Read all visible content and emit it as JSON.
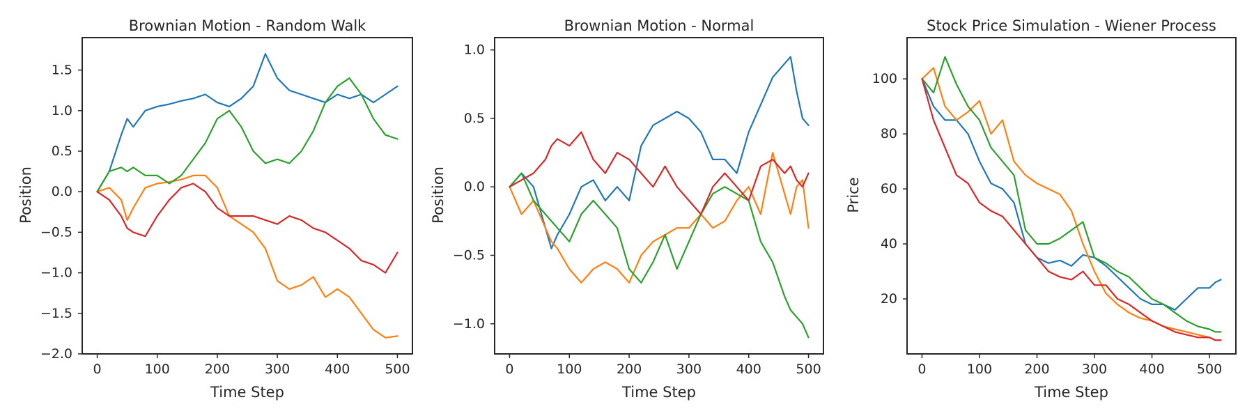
{
  "colors": [
    "#1f77b4",
    "#ff7f0e",
    "#2ca02c",
    "#d62728"
  ],
  "chart_data": [
    {
      "type": "line",
      "title": "Brownian Motion - Random Walk",
      "xlabel": "Time Step",
      "ylabel": "Position",
      "xlim": [
        -25,
        525
      ],
      "ylim": [
        -2.0,
        1.9
      ],
      "xticks": [
        0,
        100,
        200,
        300,
        400,
        500
      ],
      "yticks": [
        -2.0,
        -1.5,
        -1.0,
        -0.5,
        0.0,
        0.5,
        1.0,
        1.5
      ],
      "ytick_labels": [
        "−2.0",
        "−1.5",
        "−1.0",
        "−0.5",
        "0.0",
        "0.5",
        "1.0",
        "1.5"
      ],
      "grid": false,
      "series": [
        {
          "x": [
            0,
            20,
            40,
            50,
            60,
            80,
            100,
            120,
            140,
            160,
            180,
            200,
            220,
            240,
            260,
            280,
            300,
            320,
            340,
            360,
            380,
            400,
            420,
            440,
            460,
            480,
            500
          ],
          "y": [
            0,
            0.25,
            0.7,
            0.9,
            0.8,
            1.0,
            1.05,
            1.08,
            1.12,
            1.15,
            1.2,
            1.1,
            1.05,
            1.15,
            1.3,
            1.7,
            1.4,
            1.25,
            1.2,
            1.15,
            1.1,
            1.2,
            1.15,
            1.2,
            1.1,
            1.2,
            1.3
          ]
        },
        {
          "x": [
            0,
            20,
            40,
            50,
            60,
            80,
            100,
            120,
            140,
            160,
            180,
            200,
            220,
            240,
            260,
            280,
            300,
            320,
            340,
            360,
            380,
            400,
            420,
            440,
            460,
            480,
            500
          ],
          "y": [
            0,
            0.05,
            -0.1,
            -0.35,
            -0.2,
            0.05,
            0.1,
            0.12,
            0.15,
            0.2,
            0.2,
            0.05,
            -0.3,
            -0.4,
            -0.5,
            -0.7,
            -1.1,
            -1.2,
            -1.15,
            -1.05,
            -1.3,
            -1.2,
            -1.3,
            -1.5,
            -1.7,
            -1.8,
            -1.78
          ]
        },
        {
          "x": [
            0,
            20,
            40,
            50,
            60,
            80,
            100,
            120,
            140,
            160,
            180,
            200,
            220,
            240,
            260,
            280,
            300,
            320,
            340,
            360,
            380,
            400,
            420,
            440,
            460,
            480,
            500
          ],
          "y": [
            0,
            0.25,
            0.3,
            0.25,
            0.3,
            0.2,
            0.2,
            0.1,
            0.2,
            0.4,
            0.6,
            0.9,
            1.0,
            0.8,
            0.5,
            0.35,
            0.4,
            0.35,
            0.5,
            0.75,
            1.1,
            1.3,
            1.4,
            1.2,
            0.9,
            0.7,
            0.65
          ]
        },
        {
          "x": [
            0,
            20,
            40,
            50,
            60,
            80,
            100,
            120,
            140,
            160,
            180,
            200,
            220,
            240,
            260,
            280,
            300,
            320,
            340,
            360,
            380,
            400,
            420,
            440,
            460,
            480,
            500
          ],
          "y": [
            0,
            -0.1,
            -0.3,
            -0.45,
            -0.5,
            -0.55,
            -0.3,
            -0.1,
            0.05,
            0.1,
            0.0,
            -0.2,
            -0.3,
            -0.3,
            -0.3,
            -0.35,
            -0.4,
            -0.3,
            -0.35,
            -0.45,
            -0.5,
            -0.6,
            -0.7,
            -0.85,
            -0.9,
            -1.0,
            -0.75
          ]
        }
      ]
    },
    {
      "type": "line",
      "title": "Brownian Motion - Normal",
      "xlabel": "Time Step",
      "ylabel": "Position",
      "xlim": [
        -25,
        525
      ],
      "ylim": [
        -1.22,
        1.09
      ],
      "xticks": [
        0,
        100,
        200,
        300,
        400,
        500
      ],
      "yticks": [
        -1.0,
        -0.5,
        0.0,
        0.5,
        1.0
      ],
      "ytick_labels": [
        "−1.0",
        "−0.5",
        "0.0",
        "0.5",
        "1.0"
      ],
      "grid": false,
      "series": [
        {
          "x": [
            0,
            20,
            40,
            60,
            70,
            80,
            100,
            120,
            140,
            160,
            180,
            200,
            220,
            240,
            260,
            280,
            300,
            320,
            340,
            360,
            380,
            400,
            420,
            440,
            460,
            470,
            480,
            490,
            500
          ],
          "y": [
            0,
            0.1,
            0.0,
            -0.3,
            -0.45,
            -0.35,
            -0.2,
            0.0,
            0.05,
            -0.1,
            0.0,
            -0.1,
            0.3,
            0.45,
            0.5,
            0.55,
            0.5,
            0.4,
            0.2,
            0.2,
            0.1,
            0.4,
            0.6,
            0.8,
            0.9,
            0.95,
            0.7,
            0.5,
            0.45
          ]
        },
        {
          "x": [
            0,
            20,
            40,
            60,
            70,
            80,
            100,
            120,
            140,
            160,
            180,
            200,
            220,
            240,
            260,
            280,
            300,
            320,
            340,
            360,
            380,
            400,
            420,
            440,
            460,
            470,
            480,
            490,
            500
          ],
          "y": [
            0,
            -0.2,
            -0.1,
            -0.3,
            -0.4,
            -0.45,
            -0.6,
            -0.7,
            -0.6,
            -0.55,
            -0.6,
            -0.7,
            -0.5,
            -0.4,
            -0.35,
            -0.3,
            -0.3,
            -0.2,
            -0.3,
            -0.25,
            -0.1,
            0.0,
            -0.2,
            0.25,
            -0.05,
            -0.2,
            0.0,
            0.05,
            -0.3
          ]
        },
        {
          "x": [
            0,
            20,
            40,
            60,
            70,
            80,
            100,
            120,
            140,
            160,
            180,
            200,
            220,
            240,
            260,
            280,
            300,
            320,
            340,
            360,
            380,
            400,
            420,
            440,
            460,
            470,
            480,
            490,
            500
          ],
          "y": [
            0,
            0.1,
            -0.1,
            -0.2,
            -0.25,
            -0.3,
            -0.4,
            -0.2,
            -0.1,
            -0.2,
            -0.3,
            -0.6,
            -0.7,
            -0.55,
            -0.35,
            -0.6,
            -0.4,
            -0.2,
            -0.05,
            0.0,
            -0.05,
            -0.1,
            -0.4,
            -0.55,
            -0.8,
            -0.9,
            -0.95,
            -1.0,
            -1.1
          ]
        },
        {
          "x": [
            0,
            20,
            40,
            60,
            70,
            80,
            100,
            120,
            140,
            160,
            180,
            200,
            220,
            240,
            260,
            280,
            300,
            320,
            340,
            360,
            380,
            400,
            420,
            440,
            460,
            470,
            480,
            490,
            500
          ],
          "y": [
            0,
            0.05,
            0.1,
            0.2,
            0.3,
            0.35,
            0.3,
            0.4,
            0.2,
            0.1,
            0.25,
            0.2,
            0.1,
            0.0,
            0.15,
            0.0,
            -0.1,
            -0.2,
            0.0,
            0.1,
            0.0,
            -0.1,
            0.15,
            0.2,
            0.1,
            0.15,
            0.05,
            0.0,
            0.1
          ]
        }
      ]
    },
    {
      "type": "line",
      "title": "Stock Price Simulation - Wiener Process",
      "xlabel": "Time Step",
      "ylabel": "Price",
      "xlim": [
        -26,
        546
      ],
      "ylim": [
        0,
        115
      ],
      "xticks": [
        0,
        100,
        200,
        300,
        400,
        500
      ],
      "yticks": [
        20,
        40,
        60,
        80,
        100
      ],
      "ytick_labels": [
        "20",
        "40",
        "60",
        "80",
        "100"
      ],
      "grid": false,
      "series": [
        {
          "x": [
            0,
            20,
            40,
            60,
            80,
            100,
            120,
            140,
            160,
            180,
            200,
            220,
            240,
            260,
            280,
            300,
            320,
            340,
            360,
            380,
            400,
            420,
            440,
            460,
            480,
            500,
            510,
            520
          ],
          "y": [
            100,
            90,
            85,
            85,
            80,
            70,
            62,
            60,
            55,
            40,
            35,
            33,
            34,
            32,
            36,
            35,
            32,
            28,
            24,
            20,
            18,
            18,
            16,
            20,
            24,
            24,
            26,
            27
          ]
        },
        {
          "x": [
            0,
            20,
            40,
            60,
            80,
            100,
            120,
            140,
            160,
            180,
            200,
            220,
            240,
            260,
            280,
            300,
            320,
            340,
            360,
            380,
            400,
            420,
            440,
            460,
            480,
            500,
            510,
            520
          ],
          "y": [
            100,
            104,
            90,
            85,
            88,
            92,
            80,
            85,
            70,
            65,
            62,
            60,
            58,
            52,
            40,
            30,
            22,
            18,
            15,
            13,
            12,
            10,
            9,
            8,
            7,
            6,
            5,
            5
          ]
        },
        {
          "x": [
            0,
            20,
            40,
            60,
            80,
            100,
            120,
            140,
            160,
            180,
            200,
            220,
            240,
            260,
            280,
            300,
            320,
            340,
            360,
            380,
            400,
            420,
            440,
            460,
            480,
            500,
            510,
            520
          ],
          "y": [
            100,
            95,
            108,
            98,
            90,
            85,
            75,
            70,
            65,
            45,
            40,
            40,
            42,
            45,
            48,
            35,
            33,
            30,
            28,
            24,
            20,
            18,
            15,
            12,
            10,
            9,
            8,
            8
          ]
        },
        {
          "x": [
            0,
            20,
            40,
            60,
            80,
            100,
            120,
            140,
            160,
            180,
            200,
            220,
            240,
            260,
            280,
            300,
            320,
            340,
            360,
            380,
            400,
            420,
            440,
            460,
            480,
            500,
            510,
            520
          ],
          "y": [
            100,
            85,
            75,
            65,
            62,
            55,
            52,
            50,
            45,
            40,
            35,
            30,
            28,
            27,
            30,
            25,
            25,
            20,
            18,
            15,
            12,
            10,
            8,
            7,
            6,
            6,
            5,
            5
          ]
        }
      ]
    }
  ]
}
